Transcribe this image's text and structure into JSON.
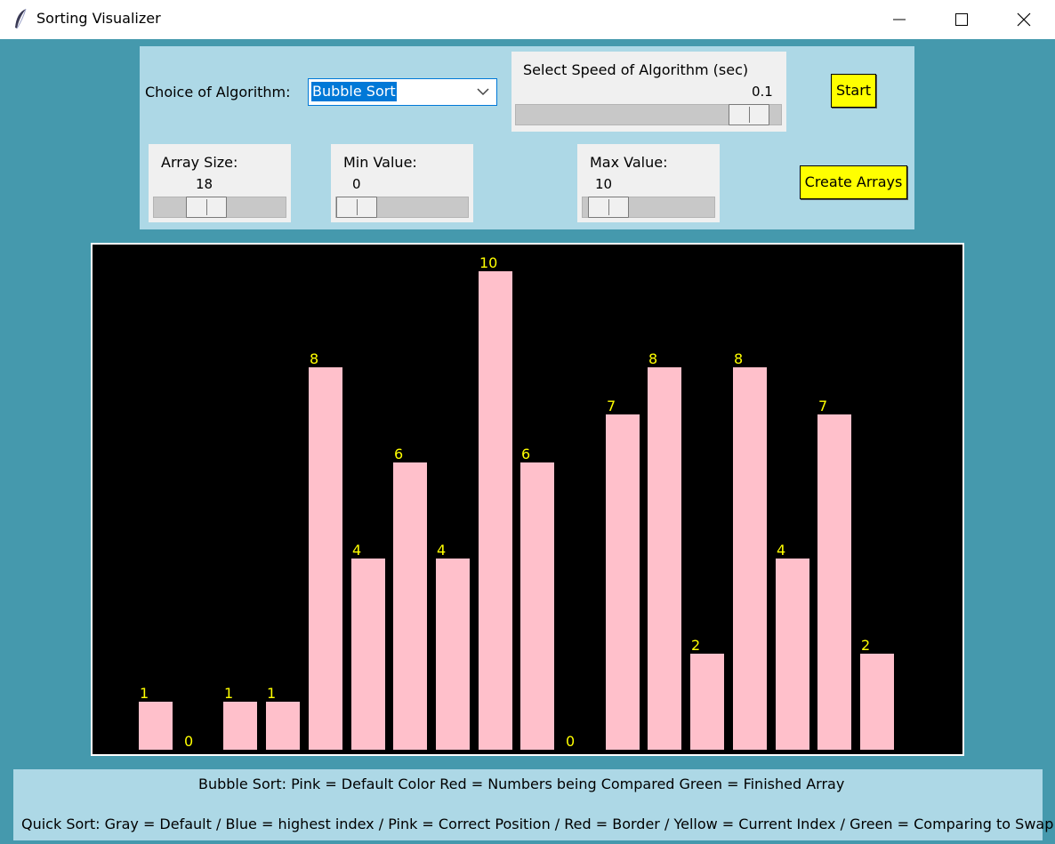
{
  "window": {
    "title": "Sorting Visualizer",
    "icon": "feather-icon",
    "controls": [
      "minimize-icon",
      "maximize-icon",
      "close-icon"
    ]
  },
  "algorithm": {
    "label": "Choice of Algorithm:",
    "selected": "Bubble Sort"
  },
  "speed": {
    "label": "Select Speed of Algorithm (sec)",
    "value": "0.1",
    "level": 0.95
  },
  "array_size": {
    "label": "Array Size:",
    "value": "18",
    "level": 0.35
  },
  "min_value": {
    "label": "Min Value:",
    "value": "0",
    "level": 0.0
  },
  "max_value": {
    "label": "Max Value:",
    "value": "10",
    "level": 0.06
  },
  "buttons": {
    "start": "Start",
    "create": "Create Arrays"
  },
  "chart_data": {
    "type": "bar",
    "values": [
      1,
      0,
      1,
      1,
      8,
      4,
      6,
      4,
      10,
      6,
      0,
      7,
      8,
      2,
      8,
      4,
      7,
      2
    ],
    "ylim": [
      0,
      10
    ],
    "bar_color": "#ffc0cb",
    "label_color": "#ffff00",
    "background": "#000000"
  },
  "legend": {
    "line1": "Bubble Sort: Pink = Default Color   Red = Numbers being Compared    Green = Finished Array",
    "line2": "Quick Sort: Gray = Default / Blue = highest index / Pink = Correct Position / Red = Border / Yellow = Current Index / Green = Comparing to Swap"
  }
}
